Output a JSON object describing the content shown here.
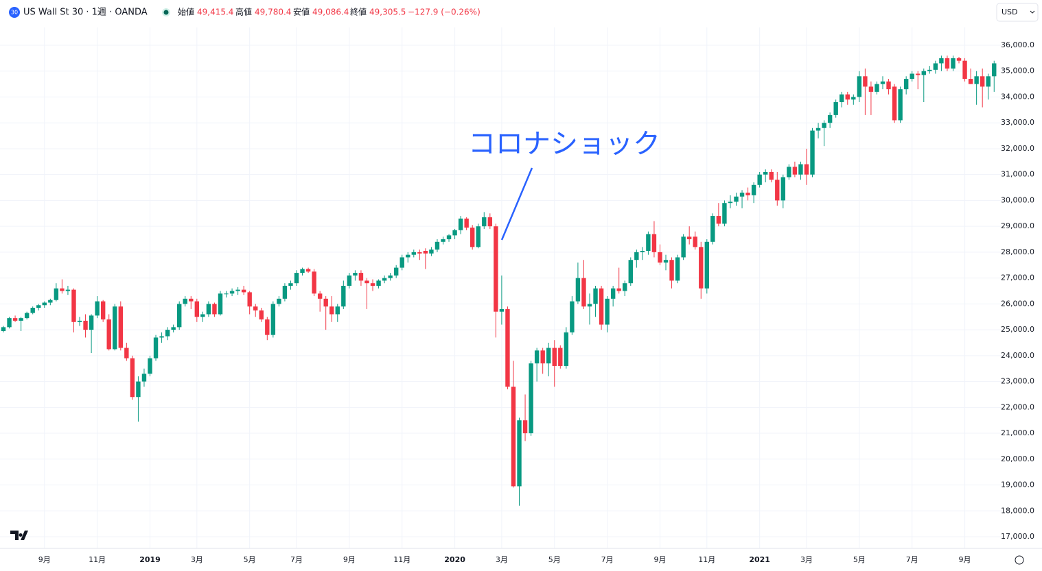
{
  "header": {
    "icon": "30",
    "symbol": "US Wall St 30 · 1週 · OANDA",
    "open_label": "始値",
    "open": "49,415.4",
    "high_label": "高値",
    "high": "49,780.4",
    "low_label": "安値",
    "low": "49,086.4",
    "close_label": "終値",
    "close": "49,305.5",
    "change": "−127.9 (−0.26%)",
    "currency": "USD"
  },
  "chart_data": {
    "type": "candlestick",
    "annotation": "コロナショック",
    "up_color": "#089981",
    "down_color": "#f23645",
    "grid": true,
    "ylim": [
      16600,
      36400
    ],
    "yticks": [
      {
        "value": 17000,
        "label": "17,000.0"
      },
      {
        "value": 18000,
        "label": "18,000.0"
      },
      {
        "value": 19000,
        "label": "19,000.0"
      },
      {
        "value": 20000,
        "label": "20,000.0"
      },
      {
        "value": 21000,
        "label": "21,000.0"
      },
      {
        "value": 22000,
        "label": "22,000.0"
      },
      {
        "value": 23000,
        "label": "23,000.0"
      },
      {
        "value": 24000,
        "label": "24,000.0"
      },
      {
        "value": 25000,
        "label": "25,000.0"
      },
      {
        "value": 26000,
        "label": "26,000.0"
      },
      {
        "value": 27000,
        "label": "27,000.0"
      },
      {
        "value": 28000,
        "label": "28,000.0"
      },
      {
        "value": 29000,
        "label": "29,000.0"
      },
      {
        "value": 30000,
        "label": "30,000.0"
      },
      {
        "value": 31000,
        "label": "31,000.0"
      },
      {
        "value": 32000,
        "label": "32,000.0"
      },
      {
        "value": 33000,
        "label": "33,000.0"
      },
      {
        "value": 34000,
        "label": "34,000.0"
      },
      {
        "value": 35000,
        "label": "35,000.0"
      },
      {
        "value": 36000,
        "label": "36,000.0"
      }
    ],
    "categories": [
      null,
      null,
      null,
      null,
      null,
      null,
      null,
      "9月",
      null,
      null,
      null,
      null,
      null,
      null,
      null,
      null,
      "11月",
      null,
      null,
      null,
      null,
      null,
      null,
      null,
      null,
      "2019",
      null,
      null,
      null,
      null,
      null,
      null,
      null,
      "3月",
      null,
      null,
      null,
      null,
      null,
      null,
      null,
      null,
      "5月",
      null,
      null,
      null,
      null,
      null,
      null,
      null,
      "7月",
      null,
      null,
      null,
      null,
      null,
      null,
      null,
      null,
      "9月",
      null,
      null,
      null,
      null,
      null,
      null,
      null,
      null,
      "11月",
      null,
      null,
      null,
      null,
      null,
      null,
      null,
      null,
      "2020",
      null,
      null,
      null,
      null,
      null,
      null,
      null,
      "3月",
      null,
      null,
      null,
      null,
      null,
      null,
      null,
      null,
      "5月",
      null,
      null,
      null,
      null,
      null,
      null,
      null,
      null,
      "7月",
      null,
      null,
      null,
      null,
      null,
      null,
      null,
      null,
      "9月",
      null,
      null,
      null,
      null,
      null,
      null,
      null,
      "11月",
      null,
      null,
      null,
      null,
      null,
      null,
      null,
      null,
      "2021",
      null,
      null,
      null,
      null,
      null,
      null,
      null,
      "3月",
      null,
      null,
      null,
      null,
      null,
      null,
      null,
      null,
      "5月",
      null,
      null,
      null,
      null,
      null,
      null,
      null,
      null,
      "7月",
      null,
      null,
      null,
      null,
      null,
      null,
      null,
      null,
      "9月",
      null,
      null,
      null,
      null,
      null
    ],
    "ohlc": [
      [
        24950,
        25150,
        24900,
        25100
      ],
      [
        25100,
        25500,
        25050,
        25450
      ],
      [
        25450,
        25550,
        25300,
        25350
      ],
      [
        25350,
        25500,
        24950,
        25450
      ],
      [
        25450,
        25700,
        25400,
        25650
      ],
      [
        25650,
        25900,
        25600,
        25850
      ],
      [
        25850,
        26000,
        25750,
        25950
      ],
      [
        25950,
        26100,
        25850,
        26050
      ],
      [
        26050,
        26200,
        25950,
        26150
      ],
      [
        26150,
        26800,
        26100,
        26600
      ],
      [
        26600,
        26950,
        26400,
        26500
      ],
      [
        26500,
        26700,
        26350,
        26550
      ],
      [
        26550,
        26600,
        24900,
        25300
      ],
      [
        25300,
        25500,
        25150,
        25350
      ],
      [
        25350,
        25600,
        24700,
        25000
      ],
      [
        25000,
        25600,
        24100,
        25550
      ],
      [
        25550,
        26300,
        25450,
        26100
      ],
      [
        26100,
        26150,
        25300,
        25400
      ],
      [
        25400,
        25600,
        24200,
        24250
      ],
      [
        24250,
        26000,
        24200,
        25900
      ],
      [
        25900,
        26100,
        24200,
        24300
      ],
      [
        24300,
        24500,
        23800,
        23900
      ],
      [
        23900,
        24000,
        22300,
        22400
      ],
      [
        22400,
        23200,
        21450,
        23000
      ],
      [
        23000,
        23500,
        22800,
        23300
      ],
      [
        23300,
        24000,
        23200,
        23900
      ],
      [
        23900,
        24800,
        23800,
        24700
      ],
      [
        24700,
        24900,
        24500,
        24750
      ],
      [
        24750,
        25100,
        24600,
        25000
      ],
      [
        25000,
        25200,
        24900,
        25100
      ],
      [
        25100,
        26100,
        25000,
        26000
      ],
      [
        26000,
        26300,
        25900,
        26200
      ],
      [
        26200,
        26300,
        25800,
        26100
      ],
      [
        26100,
        26200,
        25300,
        25500
      ],
      [
        25500,
        25700,
        25300,
        25600
      ],
      [
        25600,
        26100,
        25500,
        26000
      ],
      [
        26000,
        26050,
        25500,
        25600
      ],
      [
        25600,
        26500,
        25550,
        26400
      ],
      [
        26400,
        26500,
        26250,
        26400
      ],
      [
        26400,
        26600,
        26300,
        26500
      ],
      [
        26500,
        26650,
        26350,
        26550
      ],
      [
        26550,
        26700,
        26350,
        26450
      ],
      [
        26450,
        26500,
        25600,
        25900
      ],
      [
        25900,
        26000,
        25500,
        25750
      ],
      [
        25750,
        25850,
        25300,
        25400
      ],
      [
        25400,
        25500,
        24600,
        24800
      ],
      [
        24800,
        26100,
        24700,
        26000
      ],
      [
        26000,
        26300,
        25900,
        26200
      ],
      [
        26200,
        26800,
        26100,
        26700
      ],
      [
        26700,
        26900,
        26550,
        26800
      ],
      [
        26800,
        27300,
        26700,
        27200
      ],
      [
        27200,
        27400,
        27100,
        27350
      ],
      [
        27350,
        27400,
        27200,
        27250
      ],
      [
        27250,
        27350,
        26300,
        26400
      ],
      [
        26400,
        26500,
        25700,
        26200
      ],
      [
        26200,
        26300,
        25000,
        25900
      ],
      [
        25900,
        26300,
        25300,
        25600
      ],
      [
        25600,
        26000,
        25300,
        25900
      ],
      [
        25900,
        26900,
        25800,
        26700
      ],
      [
        26700,
        27200,
        26600,
        27100
      ],
      [
        27100,
        27300,
        26900,
        27200
      ],
      [
        27200,
        27300,
        26700,
        26900
      ],
      [
        26900,
        27000,
        25800,
        26800
      ],
      [
        26800,
        26950,
        26500,
        26700
      ],
      [
        26700,
        26950,
        26600,
        26900
      ],
      [
        26900,
        27100,
        26800,
        27000
      ],
      [
        27000,
        27200,
        26900,
        27100
      ],
      [
        27100,
        27500,
        27000,
        27400
      ],
      [
        27400,
        27900,
        27300,
        27800
      ],
      [
        27800,
        28000,
        27600,
        27900
      ],
      [
        27900,
        28100,
        27800,
        28000
      ],
      [
        28000,
        28100,
        27700,
        27950
      ],
      [
        28050,
        28150,
        27350,
        27950
      ],
      [
        27950,
        28200,
        27850,
        28100
      ],
      [
        28100,
        28500,
        28000,
        28400
      ],
      [
        28400,
        28600,
        28300,
        28500
      ],
      [
        28500,
        28700,
        28400,
        28650
      ],
      [
        28650,
        28900,
        28500,
        28850
      ],
      [
        28850,
        29400,
        28700,
        29300
      ],
      [
        29300,
        29350,
        28850,
        28950
      ],
      [
        28950,
        29050,
        28100,
        28200
      ],
      [
        28200,
        29100,
        28150,
        29000
      ],
      [
        29000,
        29550,
        28900,
        29350
      ],
      [
        29350,
        29500,
        28900,
        29000
      ],
      [
        29000,
        29100,
        24700,
        25700
      ],
      [
        25700,
        27100,
        25200,
        25800
      ],
      [
        25800,
        25900,
        22700,
        22800
      ],
      [
        22800,
        23800,
        18900,
        18950
      ],
      [
        18950,
        21600,
        18200,
        21500
      ],
      [
        21500,
        22500,
        20700,
        21000
      ],
      [
        21000,
        23800,
        20900,
        23700
      ],
      [
        23700,
        24300,
        23000,
        24200
      ],
      [
        24200,
        24300,
        23300,
        23700
      ],
      [
        23700,
        24500,
        23200,
        24300
      ],
      [
        24300,
        24600,
        22800,
        23600
      ],
      [
        24300,
        24400,
        23500,
        23600
      ],
      [
        23600,
        25100,
        23500,
        24900
      ],
      [
        24900,
        26300,
        24800,
        26100
      ],
      [
        26100,
        27600,
        26000,
        27000
      ],
      [
        27000,
        27700,
        25800,
        25900
      ],
      [
        25900,
        26400,
        25200,
        26000
      ],
      [
        26000,
        26700,
        25500,
        26600
      ],
      [
        26600,
        26700,
        25000,
        25200
      ],
      [
        25200,
        26300,
        24900,
        26200
      ],
      [
        26200,
        26700,
        25900,
        26600
      ],
      [
        26600,
        27400,
        26400,
        26500
      ],
      [
        26500,
        26900,
        26300,
        26800
      ],
      [
        26800,
        27800,
        26700,
        27700
      ],
      [
        27700,
        28100,
        27400,
        28000
      ],
      [
        28000,
        28200,
        27700,
        28050
      ],
      [
        28050,
        28800,
        27900,
        28700
      ],
      [
        28700,
        29200,
        27800,
        28000
      ],
      [
        28000,
        28300,
        27500,
        27600
      ],
      [
        27600,
        27900,
        27300,
        27700
      ],
      [
        27700,
        27800,
        26600,
        26900
      ],
      [
        26900,
        27900,
        26800,
        27800
      ],
      [
        27800,
        28700,
        27700,
        28600
      ],
      [
        28600,
        29000,
        28300,
        28500
      ],
      [
        28600,
        28800,
        28100,
        28200
      ],
      [
        28200,
        28400,
        26200,
        26600
      ],
      [
        26600,
        28500,
        26400,
        28400
      ],
      [
        28400,
        29500,
        28300,
        29400
      ],
      [
        29400,
        29900,
        29000,
        29100
      ],
      [
        29100,
        30000,
        29000,
        29900
      ],
      [
        29900,
        30200,
        29700,
        29950
      ],
      [
        29950,
        30300,
        29800,
        30150
      ],
      [
        30150,
        30400,
        29700,
        30300
      ],
      [
        30300,
        30500,
        30000,
        30200
      ],
      [
        30200,
        30700,
        29900,
        30600
      ],
      [
        30600,
        31100,
        30500,
        31000
      ],
      [
        31000,
        31200,
        30700,
        31100
      ],
      [
        31100,
        31200,
        30700,
        30800
      ],
      [
        30800,
        31100,
        29800,
        30000
      ],
      [
        30000,
        31000,
        29700,
        30900
      ],
      [
        30900,
        31400,
        30800,
        31300
      ],
      [
        31300,
        31500,
        30900,
        31000
      ],
      [
        31000,
        31500,
        30800,
        31400
      ],
      [
        31400,
        32000,
        30600,
        31000
      ],
      [
        31000,
        32800,
        30900,
        32700
      ],
      [
        32700,
        33000,
        32400,
        32800
      ],
      [
        32800,
        33100,
        32100,
        33000
      ],
      [
        33000,
        33400,
        32800,
        33300
      ],
      [
        33300,
        33900,
        33200,
        33800
      ],
      [
        33800,
        34200,
        33600,
        34100
      ],
      [
        34100,
        34200,
        33700,
        33900
      ],
      [
        33900,
        34100,
        33700,
        34000
      ],
      [
        34000,
        35000,
        33800,
        34800
      ],
      [
        34800,
        35100,
        33300,
        34400
      ],
      [
        34400,
        34600,
        33300,
        34200
      ],
      [
        34200,
        34600,
        34100,
        34500
      ],
      [
        34500,
        34800,
        34300,
        34600
      ],
      [
        34600,
        34700,
        34100,
        34300
      ],
      [
        34400,
        34500,
        33000,
        33100
      ],
      [
        33100,
        34400,
        33000,
        34300
      ],
      [
        34300,
        34800,
        34100,
        34700
      ],
      [
        34700,
        35000,
        34600,
        34900
      ],
      [
        34900,
        35000,
        34300,
        34850
      ],
      [
        34850,
        35100,
        33800,
        35000
      ],
      [
        35000,
        35200,
        34900,
        35050
      ],
      [
        35050,
        35400,
        34900,
        35300
      ],
      [
        35300,
        35600,
        35000,
        35500
      ],
      [
        35500,
        35600,
        35000,
        35100
      ],
      [
        35100,
        35600,
        35000,
        35500
      ],
      [
        35500,
        35550,
        35300,
        35400
      ],
      [
        35400,
        35500,
        34600,
        34700
      ],
      [
        34700,
        35100,
        34500,
        34500
      ],
      [
        34500,
        35000,
        33700,
        34800
      ],
      [
        34800,
        35100,
        33600,
        34400
      ],
      [
        34400,
        34900,
        33900,
        34800
      ],
      [
        34800,
        35400,
        34200,
        35300
      ]
    ]
  }
}
